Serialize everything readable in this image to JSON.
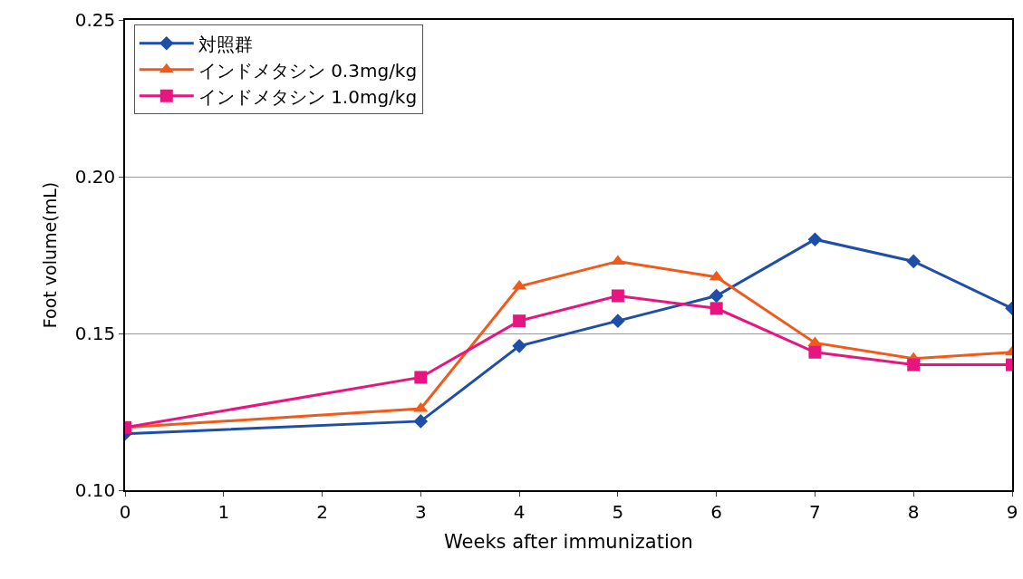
{
  "chart_data": {
    "type": "line",
    "xlabel": "Weeks after immunization",
    "ylabel": "Foot volume(mL)",
    "x": [
      0,
      3,
      4,
      5,
      6,
      7,
      8,
      9
    ],
    "xlim": [
      0,
      9
    ],
    "xticks": [
      0,
      1,
      2,
      3,
      4,
      5,
      6,
      7,
      8,
      9
    ],
    "ylim": [
      0.1,
      0.25
    ],
    "yticks": [
      {
        "value": 0.1,
        "label": "0.10"
      },
      {
        "value": 0.15,
        "label": "0.15"
      },
      {
        "value": 0.2,
        "label": "0.20"
      },
      {
        "value": 0.25,
        "label": "0.25"
      }
    ],
    "grid": "y",
    "legend": "top left",
    "line_style": "solid",
    "series": [
      {
        "name": "対照群",
        "color": "#1f4ea8",
        "marker": "diamond",
        "values": [
          0.118,
          0.122,
          0.146,
          0.154,
          0.162,
          0.18,
          0.173,
          0.158
        ]
      },
      {
        "name": "インドメタシン 0.3mg/kg",
        "color": "#f05a1a",
        "marker": "triangle",
        "values": [
          0.12,
          0.126,
          0.165,
          0.173,
          0.168,
          0.147,
          0.142,
          0.144
        ]
      },
      {
        "name": "インドメタシン 1.0mg/kg",
        "color": "#e6157f",
        "marker": "square",
        "values": [
          0.12,
          0.136,
          0.154,
          0.162,
          0.158,
          0.144,
          0.14,
          0.14
        ]
      }
    ]
  }
}
